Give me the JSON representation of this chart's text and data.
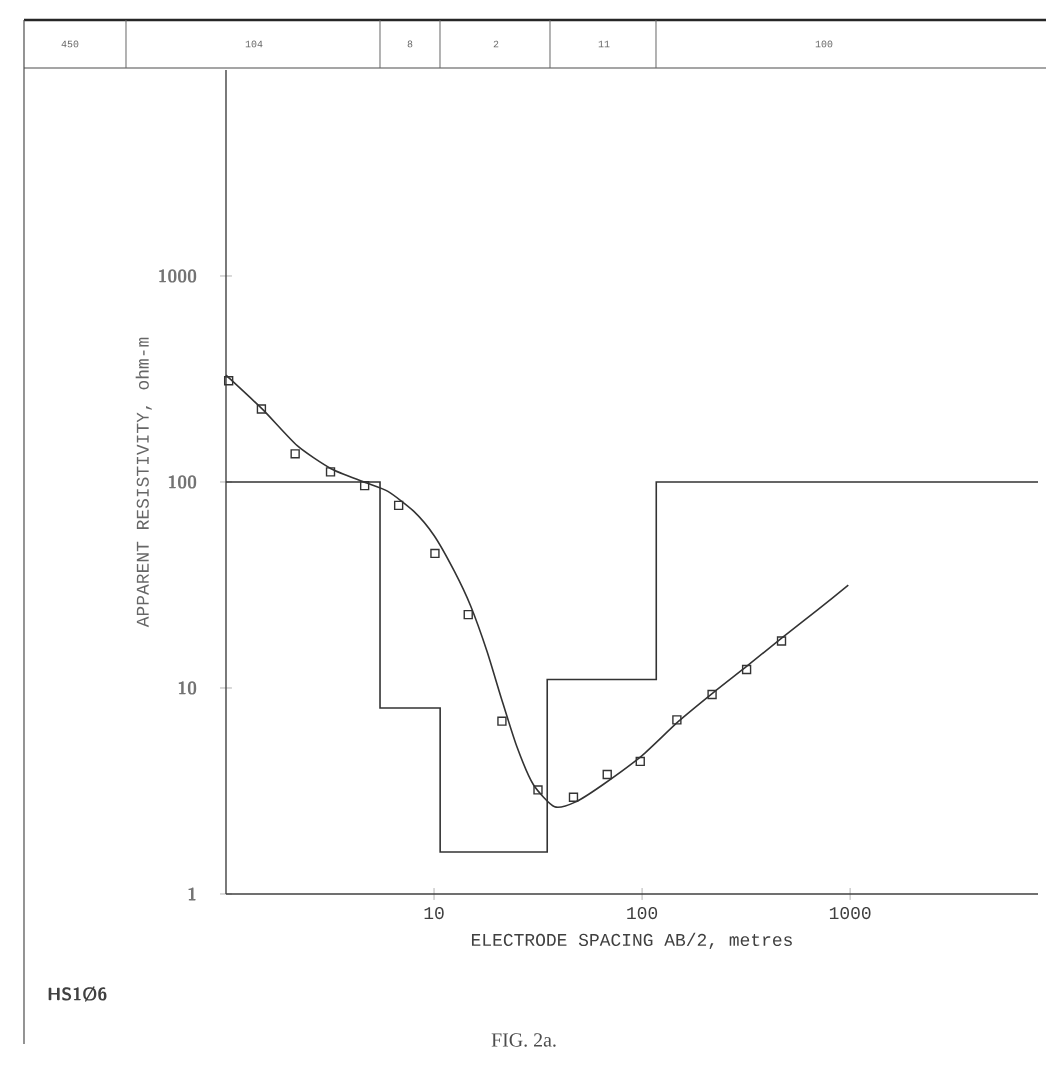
{
  "chart_data": {
    "type": "line",
    "xlabel": "ELECTRODE SPACING AB/2, metres",
    "ylabel": "APPARENT RESISTIVITY, ohm-m",
    "annotations": [
      "HS1Ø6",
      "FIG. 2a.",
      "450",
      "104",
      "8",
      "2",
      "11",
      "100"
    ],
    "log": "xy",
    "xlim": [
      1,
      8000
    ],
    "ylim": [
      1,
      10000
    ],
    "xticks": [
      10,
      100,
      1000
    ],
    "yticks": [
      1,
      10,
      100,
      1000
    ],
    "series": [
      {
        "type": "step",
        "color": "#333333",
        "x": [
          1,
          5.5,
          10.7,
          35,
          117,
          8000
        ],
        "values": [
          100,
          8,
          1.6,
          11,
          100,
          100
        ]
      },
      {
        "type": "line",
        "color": "#333333",
        "x": [
          1,
          1.5,
          2.2,
          3.2,
          4.6,
          6,
          8,
          10,
          12.5,
          15,
          18,
          21,
          25,
          30,
          38,
          48,
          65,
          100,
          150,
          220,
          320,
          470,
          700,
          980
        ],
        "values": [
          330,
          225,
          150,
          116,
          100,
          90,
          72,
          55,
          37,
          25,
          15,
          9,
          5.2,
          3.4,
          2.65,
          2.8,
          3.4,
          4.7,
          6.9,
          9.5,
          12.8,
          17.5,
          24,
          31.6
        ]
      },
      {
        "type": "scatter",
        "color": "#333333",
        "marker": "square",
        "x": [
          1.03,
          1.48,
          2.15,
          3.18,
          4.64,
          6.76,
          10.1,
          14.6,
          21.2,
          31.6,
          46.8,
          68,
          98,
          147,
          217,
          318,
          468
        ],
        "values": [
          310,
          226,
          137,
          112,
          96,
          77,
          45,
          22.7,
          6.9,
          3.2,
          2.95,
          3.8,
          4.4,
          7.0,
          9.3,
          12.3,
          16.9
        ]
      }
    ]
  }
}
